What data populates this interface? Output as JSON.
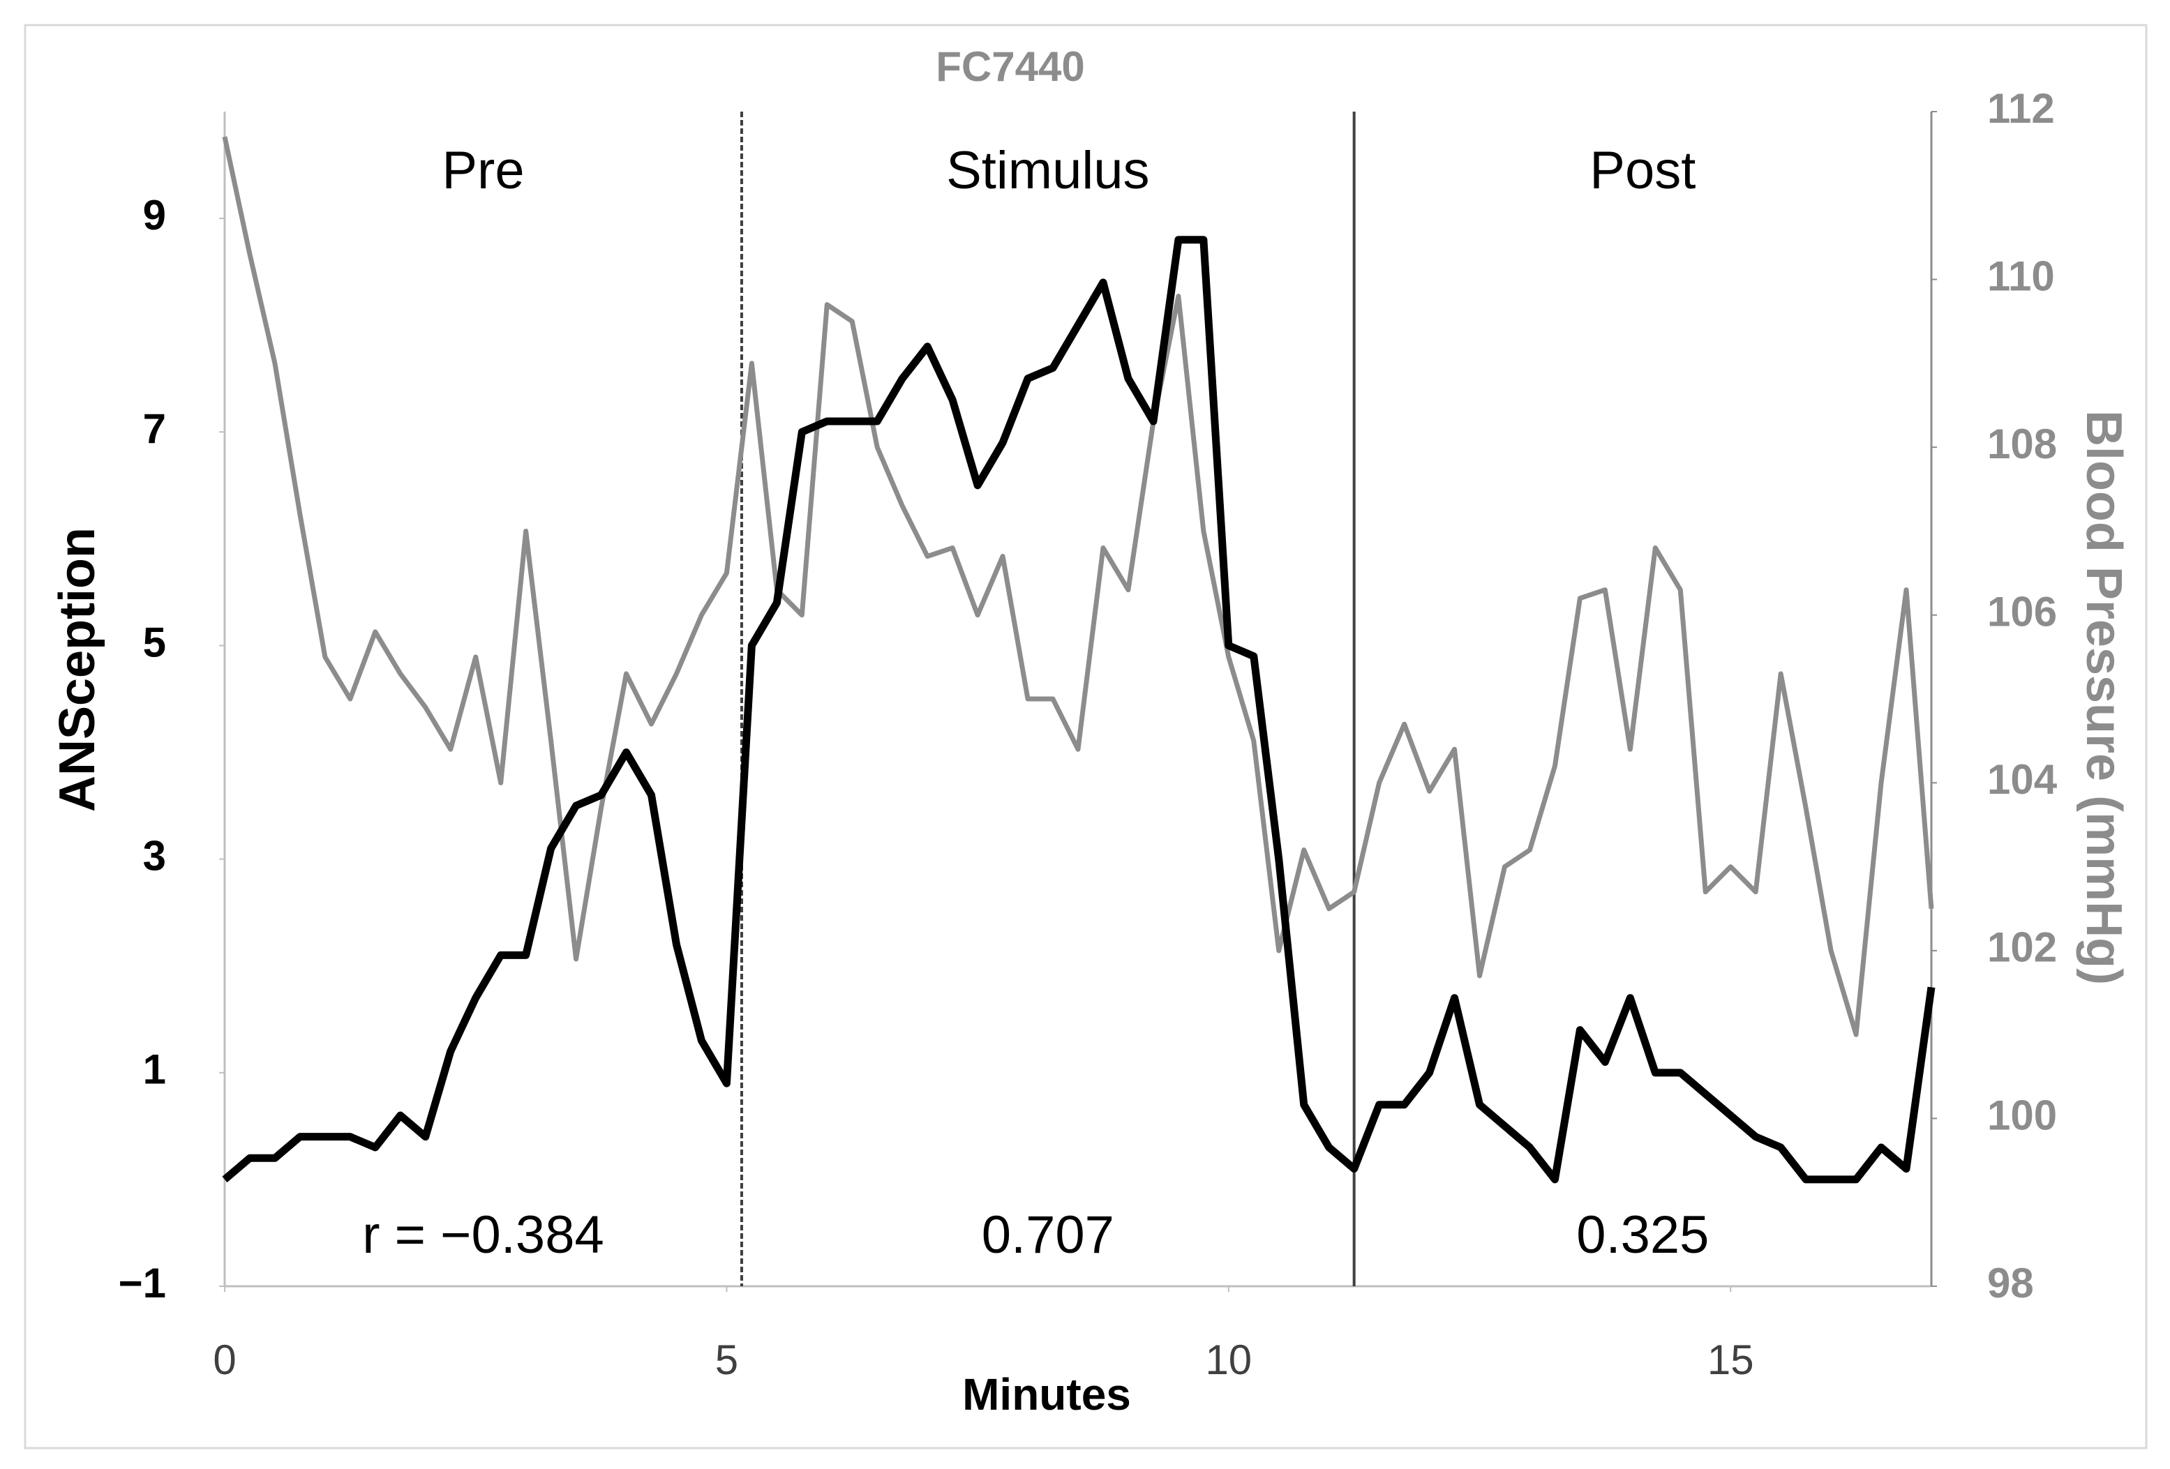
{
  "chart_data": {
    "type": "line",
    "title": "FC7440",
    "x_label": "Minutes",
    "y_label": "ANSception",
    "y2_label": "Blood Pressure (mmHg)",
    "xlim": [
      0,
      17
    ],
    "xticks": [
      0,
      5,
      10,
      15
    ],
    "ylim": [
      -1,
      10
    ],
    "yticks": [
      {
        "value": -1,
        "label": "−1"
      },
      1,
      3,
      5,
      7,
      9
    ],
    "y2lim": [
      98,
      112
    ],
    "y2ticks": [
      98,
      100,
      102,
      104,
      106,
      108,
      110,
      112
    ],
    "dividers": [
      5.15,
      11.25
    ],
    "phases": [
      "Pre",
      "Stimulus",
      "Post"
    ],
    "correlations": [
      "r = −0.384",
      "0.707",
      "0.325"
    ],
    "x": [
      0,
      0.25,
      0.5,
      0.75,
      1,
      1.25,
      1.5,
      1.75,
      2,
      2.25,
      2.5,
      2.75,
      3,
      3.25,
      3.5,
      3.75,
      4,
      4.25,
      4.5,
      4.75,
      5,
      5.25,
      5.5,
      5.75,
      6,
      6.25,
      6.5,
      6.75,
      7,
      7.25,
      7.5,
      7.75,
      8,
      8.25,
      8.5,
      8.75,
      9,
      9.25,
      9.5,
      9.75,
      10,
      10.25,
      10.5,
      10.75,
      11,
      11.25,
      11.5,
      11.75,
      12,
      12.25,
      12.5,
      12.75,
      13,
      13.25,
      13.5,
      13.75,
      14,
      14.25,
      14.5,
      14.75,
      15,
      15.25,
      15.5,
      15.75,
      16,
      16.25,
      16.5,
      16.75,
      17
    ],
    "series": [
      {
        "color": "#000000",
        "axis": "y",
        "values": [
          0,
          0.2,
          0.2,
          0.4,
          0.4,
          0.4,
          0.3,
          0.6,
          0.4,
          1.2,
          1.7,
          2.1,
          2.1,
          3.1,
          3.5,
          3.6,
          4.0,
          3.6,
          2.2,
          1.3,
          0.9,
          5.0,
          5.4,
          7.0,
          7.1,
          7.1,
          7.1,
          7.5,
          7.8,
          7.3,
          6.5,
          6.9,
          7.5,
          7.6,
          8.0,
          8.4,
          7.5,
          7.1,
          8.8,
          8.8,
          5.0,
          4.9,
          3.0,
          0.7,
          0.3,
          0.1,
          0.7,
          0.7,
          1.0,
          1.7,
          0.7,
          0.5,
          0.3,
          0.0,
          1.4,
          1.1,
          1.7,
          1.0,
          1.0,
          0.8,
          0.6,
          0.4,
          0.3,
          0.0,
          0.0,
          0.0,
          0.3,
          0.1,
          1.8
        ]
      },
      {
        "color": "#8c8c8c",
        "axis": "y2",
        "values": [
          111.7,
          110.3,
          109.0,
          107.2,
          105.5,
          105.0,
          105.8,
          105.3,
          104.9,
          104.4,
          105.5,
          104.0,
          107.0,
          104.5,
          101.9,
          103.7,
          105.3,
          104.7,
          105.3,
          106.0,
          106.5,
          109.0,
          106.3,
          106.0,
          109.7,
          109.5,
          108.0,
          107.3,
          106.7,
          106.8,
          106.0,
          106.7,
          105.0,
          105.0,
          104.4,
          106.8,
          106.3,
          108.3,
          109.8,
          107.0,
          105.5,
          104.5,
          102.0,
          103.2,
          102.5,
          102.7,
          104.0,
          104.7,
          103.9,
          104.4,
          101.7,
          103.0,
          103.2,
          104.2,
          106.2,
          106.3,
          104.4,
          106.8,
          106.3,
          102.7,
          103.0,
          102.7,
          105.3,
          103.7,
          102.0,
          101.0,
          104.0,
          106.3,
          102.5
        ]
      }
    ]
  }
}
